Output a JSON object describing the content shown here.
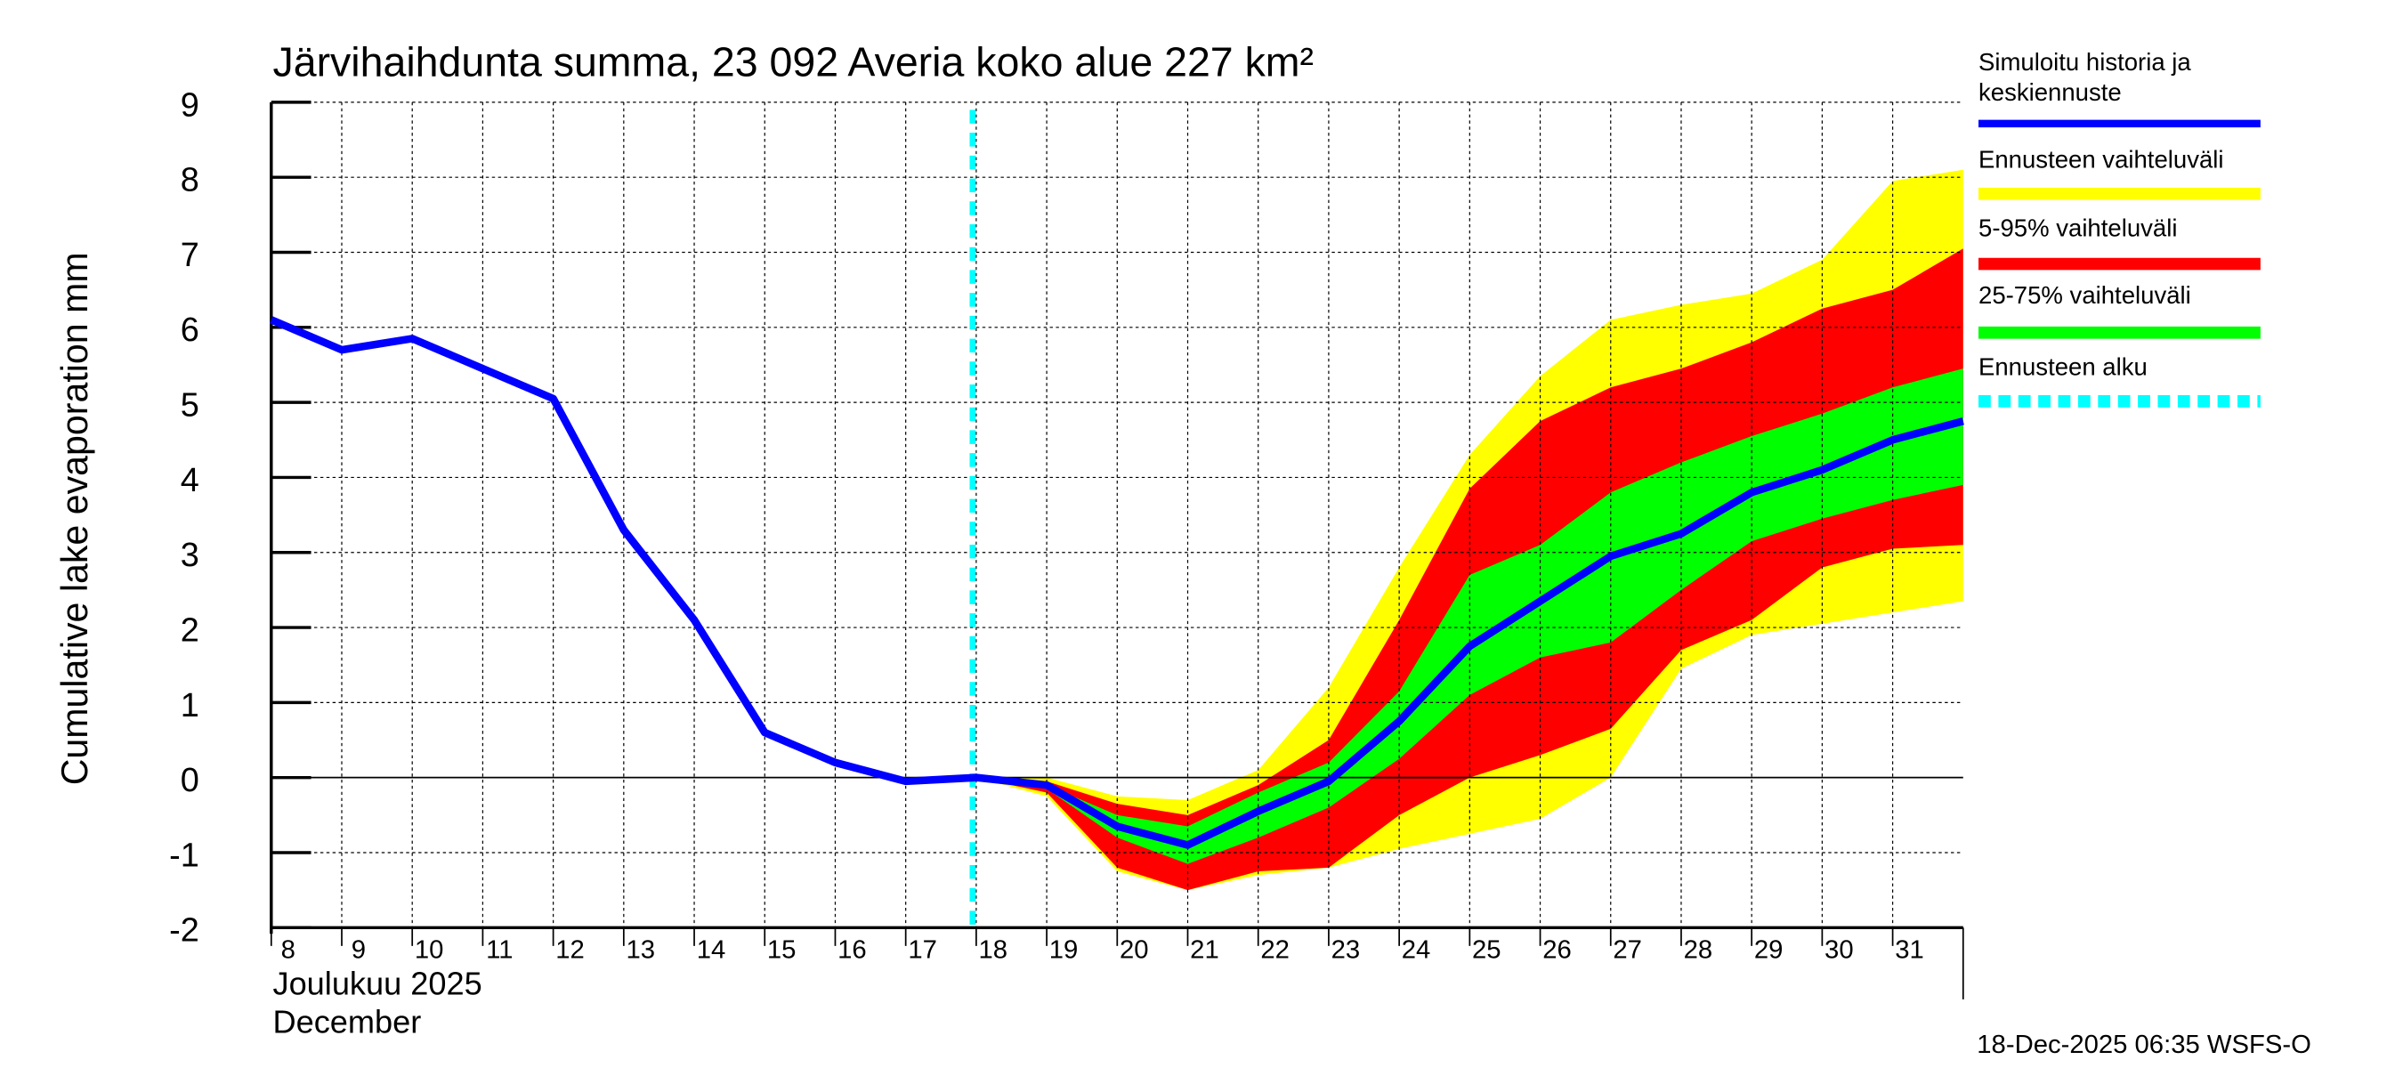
{
  "chart_data": {
    "type": "area",
    "title": "Järvihaihdunta summa, 23 092 Averia koko alue 227 km²",
    "ylabel": "Cumulative lake evaporation   mm",
    "xlabel_line1": "Joulukuu  2025",
    "xlabel_line2": "December",
    "ylim": [
      -2,
      9
    ],
    "xlim": [
      8,
      32
    ],
    "yticks": [
      "-2",
      "-1",
      "0",
      "1",
      "2",
      "3",
      "4",
      "5",
      "6",
      "7",
      "8",
      "9"
    ],
    "xticks": [
      "8",
      "9",
      "10",
      "11",
      "12",
      "13",
      "14",
      "15",
      "16",
      "17",
      "18",
      "19",
      "20",
      "21",
      "22",
      "23",
      "24",
      "25",
      "26",
      "27",
      "28",
      "29",
      "30",
      "31"
    ],
    "forecast_start_day": 17.95,
    "grid": true,
    "legend_placement": "right",
    "legend": [
      {
        "label": "Simuloitu historia ja keskiennuste",
        "color": "#0000ff",
        "style": "line"
      },
      {
        "label": "Ennusteen vaihteluväli",
        "color": "#ffff00",
        "style": "band"
      },
      {
        "label": "5-95% vaihteluväli",
        "color": "#ff0000",
        "style": "band"
      },
      {
        "label": "25-75% vaihteluväli",
        "color": "#00ff00",
        "style": "band"
      },
      {
        "label": "Ennusteen alku",
        "color": "#00ffff",
        "style": "dashed"
      }
    ],
    "series": {
      "median": {
        "x": [
          8,
          9,
          10,
          11,
          12,
          13,
          14,
          15,
          16,
          17,
          18,
          19,
          20,
          21,
          22,
          23,
          24,
          25,
          26,
          27,
          28,
          29,
          30,
          31,
          32
        ],
        "y": [
          6.1,
          5.7,
          5.85,
          5.45,
          5.05,
          3.3,
          2.1,
          0.6,
          0.2,
          -0.05,
          0,
          -0.1,
          -0.65,
          -0.9,
          -0.45,
          -0.05,
          0.75,
          1.75,
          2.35,
          2.95,
          3.25,
          3.8,
          4.1,
          4.5,
          4.75
        ]
      },
      "range_band": {
        "x": [
          18,
          19,
          20,
          21,
          22,
          23,
          24,
          25,
          26,
          27,
          28,
          29,
          30,
          31,
          32
        ],
        "upper": [
          0,
          0,
          -0.25,
          -0.3,
          0.1,
          1.2,
          2.8,
          4.3,
          5.35,
          6.1,
          6.3,
          6.45,
          6.9,
          7.95,
          8.1
        ],
        "lower": [
          0,
          -0.25,
          -1.25,
          -1.5,
          -1.3,
          -1.2,
          -0.95,
          -0.75,
          -0.55,
          0.0,
          1.45,
          1.9,
          2.05,
          2.2,
          2.35
        ]
      },
      "p5_95": {
        "x": [
          18,
          19,
          20,
          21,
          22,
          23,
          24,
          25,
          26,
          27,
          28,
          29,
          30,
          31,
          32
        ],
        "upper": [
          0,
          -0.05,
          -0.35,
          -0.5,
          -0.1,
          0.5,
          2.1,
          3.85,
          4.75,
          5.2,
          5.45,
          5.8,
          6.25,
          6.5,
          7.05
        ],
        "lower": [
          0,
          -0.2,
          -1.2,
          -1.5,
          -1.25,
          -1.2,
          -0.5,
          0.0,
          0.3,
          0.65,
          1.7,
          2.1,
          2.8,
          3.05,
          3.1
        ]
      },
      "p25_75": {
        "x": [
          18,
          19,
          20,
          21,
          22,
          23,
          24,
          25,
          26,
          27,
          28,
          29,
          30,
          31,
          32
        ],
        "upper": [
          0,
          -0.1,
          -0.5,
          -0.65,
          -0.2,
          0.2,
          1.15,
          2.7,
          3.1,
          3.8,
          4.2,
          4.55,
          4.85,
          5.2,
          5.45
        ],
        "lower": [
          0,
          -0.15,
          -0.8,
          -1.15,
          -0.8,
          -0.4,
          0.25,
          1.1,
          1.6,
          1.8,
          2.5,
          3.15,
          3.45,
          3.7,
          3.9
        ]
      }
    },
    "footer": "18-Dec-2025 06:35 WSFS-O"
  }
}
